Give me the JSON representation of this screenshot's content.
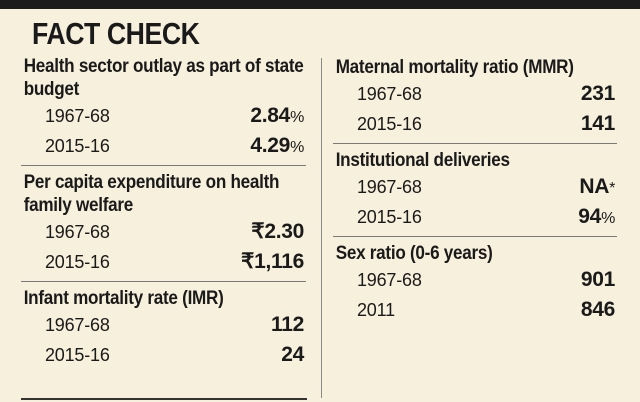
{
  "header": {
    "title": "FACT CHECK"
  },
  "left_sections": [
    {
      "title": "Health sector outlay as part of state budget",
      "rows": [
        {
          "year": "1967-68",
          "value": "2.84",
          "unit": "%"
        },
        {
          "year": "2015-16",
          "value": "4.29",
          "unit": "%"
        }
      ]
    },
    {
      "title": "Per capita expenditure on health family welfare",
      "rows": [
        {
          "year": "1967-68",
          "value": "₹2.30",
          "unit": ""
        },
        {
          "year": "2015-16",
          "value": "₹1,116",
          "unit": ""
        }
      ]
    },
    {
      "title": "Infant mortality rate (IMR)",
      "rows": [
        {
          "year": "1967-68",
          "value": "112",
          "unit": ""
        },
        {
          "year": "2015-16",
          "value": "24",
          "unit": ""
        }
      ]
    }
  ],
  "right_sections": [
    {
      "title": "Maternal mortality ratio (MMR)",
      "rows": [
        {
          "year": "1967-68",
          "value": "231",
          "unit": ""
        },
        {
          "year": "2015-16",
          "value": "141",
          "unit": ""
        }
      ]
    },
    {
      "title": "Institutional deliveries",
      "rows": [
        {
          "year": "1967-68",
          "value": "NA",
          "unit": "*"
        },
        {
          "year": "2015-16",
          "value": "94",
          "unit": "%"
        }
      ]
    },
    {
      "title": "Sex ratio (0-6 years)",
      "rows": [
        {
          "year": "1967-68",
          "value": "901",
          "unit": ""
        },
        {
          "year": "2011",
          "value": "846",
          "unit": ""
        }
      ]
    }
  ]
}
